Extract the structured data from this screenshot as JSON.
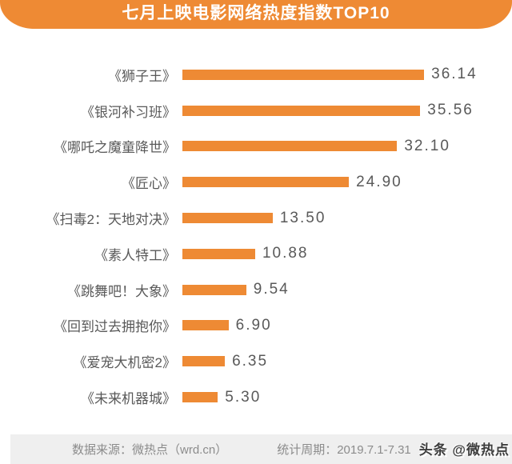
{
  "header": {
    "title": "七月上映电影网络热度指数TOP10"
  },
  "chart_data": {
    "type": "bar",
    "orientation": "horizontal",
    "title": "七月上映电影网络热度指数TOP10",
    "categories": [
      "《狮子王》",
      "《银河补习班》",
      "《哪吒之魔童降世》",
      "《匠心》",
      "《扫毒2：天地对决》",
      "《素人特工》",
      "《跳舞吧！大象》",
      "《回到过去拥抱你》",
      "《爱宠大机密2》",
      "《未来机器城》"
    ],
    "values": [
      36.14,
      35.56,
      32.1,
      24.9,
      13.5,
      10.88,
      9.54,
      6.9,
      6.35,
      5.3
    ],
    "value_labels": [
      "36.14",
      "35.56",
      "32.10",
      "24.90",
      "13.50",
      "10.88",
      "9.54",
      "6.90",
      "6.35",
      "5.30"
    ],
    "xlabel": "",
    "ylabel": "",
    "xlim": [
      0,
      38
    ],
    "grid": false,
    "legend": "none",
    "value_label_position": "right-of-bar"
  },
  "footer": {
    "source": "数据来源：微热点（wrd.cn）",
    "period": "统计周期：2019.7.1-7.31",
    "watermark": "头条 @微热点"
  },
  "colors": {
    "accent": "#EE8A34",
    "header_text": "#FFFFFF",
    "label_text": "#595959",
    "footer_bg": "#EFEFEF",
    "footer_text": "#8C8C8C",
    "watermark_text": "#3D3D3D"
  }
}
